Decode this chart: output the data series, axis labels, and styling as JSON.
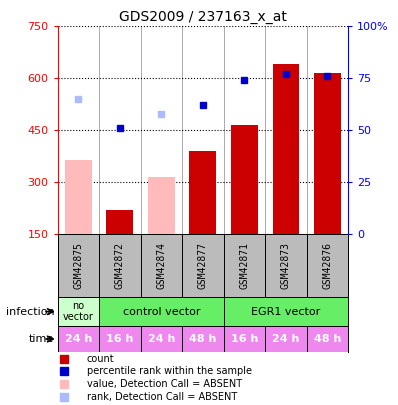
{
  "title": "GDS2009 / 237163_x_at",
  "samples": [
    "GSM42875",
    "GSM42872",
    "GSM42874",
    "GSM42877",
    "GSM42871",
    "GSM42873",
    "GSM42876"
  ],
  "count_values": [
    null,
    220,
    null,
    390,
    465,
    640,
    615
  ],
  "count_absent": [
    365,
    null,
    315,
    null,
    null,
    null,
    null
  ],
  "rank_values_pct": [
    null,
    51,
    null,
    62,
    74,
    77,
    76
  ],
  "rank_absent_pct": [
    65,
    null,
    58,
    null,
    null,
    null,
    null
  ],
  "ylim_left": [
    150,
    750
  ],
  "ylim_right": [
    0,
    100
  ],
  "yticks_left": [
    150,
    300,
    450,
    600,
    750
  ],
  "yticks_right": [
    0,
    25,
    50,
    75,
    100
  ],
  "time_labels": [
    "24 h",
    "16 h",
    "24 h",
    "48 h",
    "16 h",
    "24 h",
    "48 h"
  ],
  "time_color": "#ee88ee",
  "bar_color_present": "#cc0000",
  "bar_color_absent": "#ffbbbb",
  "dot_color_present": "#0000cc",
  "dot_color_absent": "#aabbff",
  "sample_label_bg": "#bbbbbb",
  "infection_novector_color": "#ccffcc",
  "infection_vector_color": "#66ee66",
  "legend_items": [
    {
      "color": "#cc0000",
      "marker": "square",
      "label": "count"
    },
    {
      "color": "#0000cc",
      "marker": "square",
      "label": "percentile rank within the sample"
    },
    {
      "color": "#ffbbbb",
      "marker": "square",
      "label": "value, Detection Call = ABSENT"
    },
    {
      "color": "#aabbff",
      "marker": "square",
      "label": "rank, Detection Call = ABSENT"
    }
  ]
}
